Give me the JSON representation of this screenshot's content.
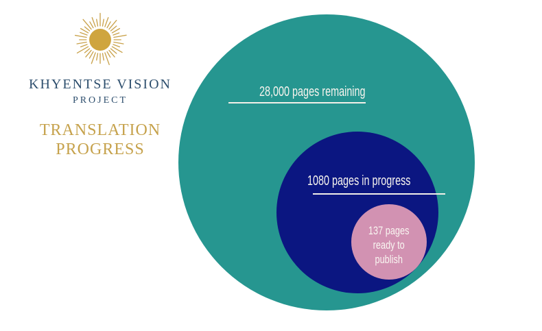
{
  "brand": {
    "logo_icon": "sunburst-sun-icon",
    "name_line1": "KHYENTSE VISION",
    "name_line2": "PROJECT",
    "title_line1": "TRANSLATION",
    "title_line2": "PROGRESS"
  },
  "colors": {
    "teal_circle": "#269690",
    "navy_circle": "#0b1681",
    "pink_circle": "#d292b2",
    "gold_accent": "#c6a24c",
    "brand_blue": "#2d4e6d",
    "label_text": "#f7f4ee",
    "background": "#ffffff"
  },
  "chart_data": {
    "type": "nested-circles",
    "title": "Translation Progress",
    "legend_position": "none",
    "grid": false,
    "series": [
      {
        "name": "pages_remaining",
        "label": "28,000 pages remaining",
        "value": 28000,
        "color": "#269690"
      },
      {
        "name": "pages_in_progress",
        "label": "1080 pages in progress",
        "value": 1080,
        "color": "#0b1681"
      },
      {
        "name": "pages_ready_to_publish",
        "label": "137 pages ready to publish",
        "label_lines": [
          "137 pages",
          "ready to",
          "publish"
        ],
        "value": 137,
        "color": "#d292b2"
      }
    ]
  }
}
